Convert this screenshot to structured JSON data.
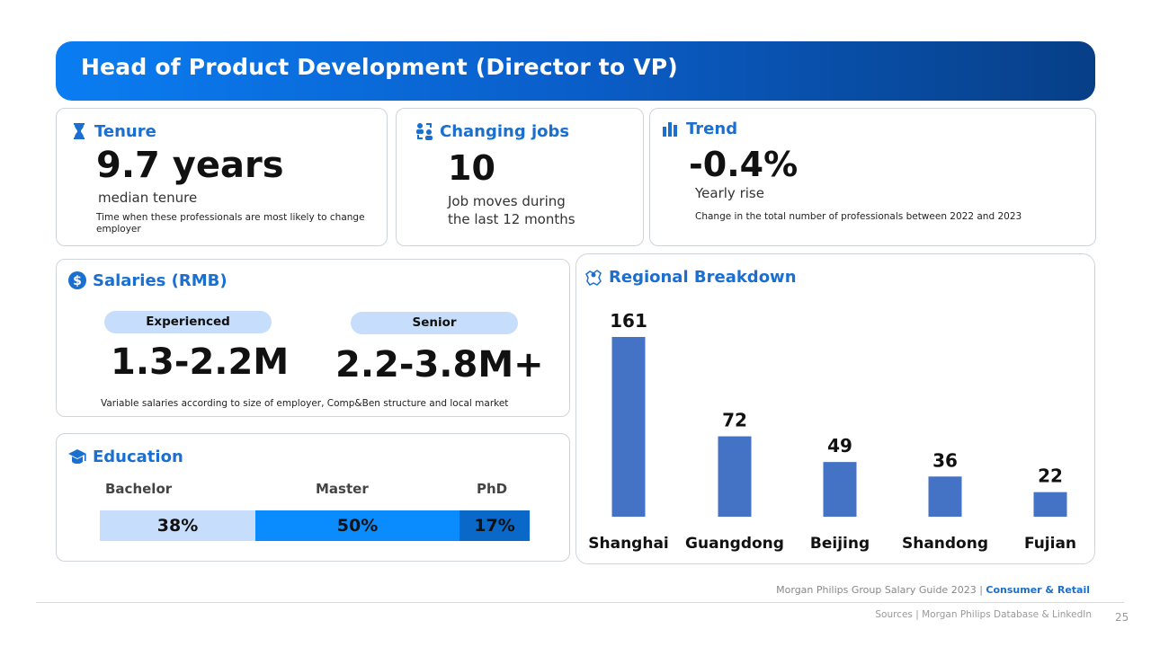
{
  "banner": {
    "title": "Head of Product Development (Director to VP)"
  },
  "tenure": {
    "label": "Tenure",
    "value": "9.7 years",
    "sub": "median tenure",
    "note": "Time when these professionals are most likely to  change employer",
    "icon": "hourglass-icon"
  },
  "jobs": {
    "label": "Changing jobs",
    "value": "10",
    "sub": "Job moves during the last 12 months",
    "icon": "people-exchange-icon"
  },
  "trend": {
    "label": "Trend",
    "value": "-0.4%",
    "sub": "Yearly rise",
    "note": "Change in the total number of professionals between 2022 and 2023",
    "icon": "bar-chart-icon"
  },
  "salaries": {
    "label": "Salaries (RMB)",
    "icon": "dollar-icon",
    "experienced_label": "Experienced",
    "experienced_value": "1.3-2.2M",
    "senior_label": "Senior",
    "senior_value": "2.2-3.8M+",
    "note": "Variable salaries according to size of employer, Comp&Ben structure and local market"
  },
  "education": {
    "label": "Education",
    "icon": "graduation-cap-icon",
    "items": [
      {
        "name": "Bachelor",
        "value": "38%",
        "color": "#c6defb"
      },
      {
        "name": "Master",
        "value": "50%",
        "color": "#0a8cff"
      },
      {
        "name": "PhD",
        "value": "17%",
        "color": "#0a68c8"
      }
    ]
  },
  "regional": {
    "label": "Regional Breakdown",
    "icon": "map-pin-icon"
  },
  "chart_data": {
    "type": "bar",
    "categories": [
      "Shanghai",
      "Guangdong",
      "Beijing",
      "Shandong",
      "Fujian"
    ],
    "values": [
      161,
      72,
      49,
      36,
      22
    ],
    "color": "#4472c4",
    "title": "",
    "xlabel": "",
    "ylabel": ""
  },
  "footer": {
    "guide": "Morgan Philips Group Salary Guide 2023 |",
    "sector": "Consumer & Retail",
    "sources": "Sources | Morgan Philips Database & LinkedIn",
    "page": "25"
  }
}
